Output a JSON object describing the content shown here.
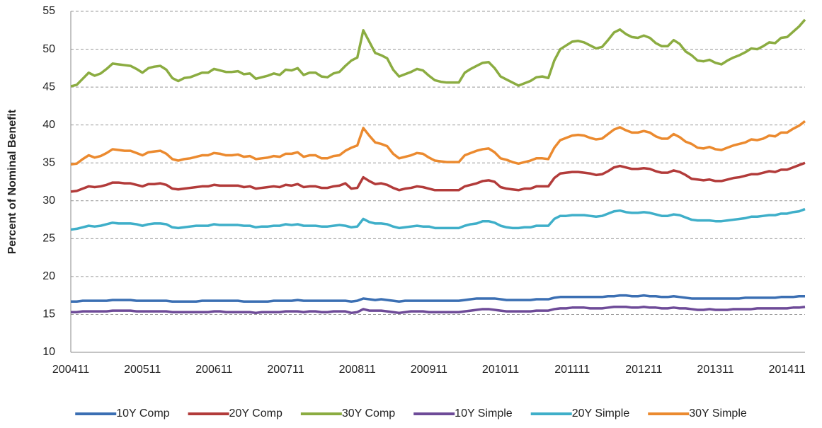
{
  "chart_data": {
    "type": "line",
    "y_label": "Percent of Nominal Benefit",
    "categories": [
      "200411",
      null,
      null,
      null,
      null,
      null,
      null,
      null,
      null,
      null,
      null,
      null,
      "200511",
      null,
      null,
      null,
      null,
      null,
      null,
      null,
      null,
      null,
      null,
      null,
      "200611",
      null,
      null,
      null,
      null,
      null,
      null,
      null,
      null,
      null,
      null,
      null,
      "200711",
      null,
      null,
      null,
      null,
      null,
      null,
      null,
      null,
      null,
      null,
      null,
      "200811",
      null,
      null,
      null,
      null,
      null,
      null,
      null,
      null,
      null,
      null,
      null,
      "200911",
      null,
      null,
      null,
      null,
      null,
      null,
      null,
      null,
      null,
      null,
      null,
      "201011",
      null,
      null,
      null,
      null,
      null,
      null,
      null,
      null,
      null,
      null,
      null,
      "201111",
      null,
      null,
      null,
      null,
      null,
      null,
      null,
      null,
      null,
      null,
      null,
      "201211",
      null,
      null,
      null,
      null,
      null,
      null,
      null,
      null,
      null,
      null,
      null,
      "201311",
      null,
      null,
      null,
      null,
      null,
      null,
      null,
      null,
      null,
      null,
      null,
      "201411",
      null,
      null,
      null
    ],
    "ylim": [
      10,
      55
    ],
    "yticks": [
      10,
      15,
      20,
      25,
      30,
      35,
      40,
      45,
      50,
      55
    ],
    "grid": true,
    "legend": "bottom",
    "series": [
      {
        "name": "10Y Comp",
        "color": "#3b6fb3",
        "values": [
          16.7,
          16.7,
          16.8,
          16.8,
          16.8,
          16.8,
          16.8,
          16.9,
          16.9,
          16.9,
          16.9,
          16.8,
          16.8,
          16.8,
          16.8,
          16.8,
          16.8,
          16.7,
          16.7,
          16.7,
          16.7,
          16.7,
          16.8,
          16.8,
          16.8,
          16.8,
          16.8,
          16.8,
          16.8,
          16.7,
          16.7,
          16.7,
          16.7,
          16.7,
          16.8,
          16.8,
          16.8,
          16.8,
          16.9,
          16.8,
          16.8,
          16.8,
          16.8,
          16.8,
          16.8,
          16.8,
          16.8,
          16.7,
          16.8,
          17.1,
          17.0,
          16.9,
          17.0,
          16.9,
          16.8,
          16.7,
          16.8,
          16.8,
          16.8,
          16.8,
          16.8,
          16.8,
          16.8,
          16.8,
          16.8,
          16.8,
          16.9,
          17.0,
          17.1,
          17.1,
          17.1,
          17.1,
          17.0,
          16.9,
          16.9,
          16.9,
          16.9,
          16.9,
          17.0,
          17.0,
          17.0,
          17.2,
          17.3,
          17.3,
          17.3,
          17.3,
          17.3,
          17.3,
          17.3,
          17.3,
          17.4,
          17.4,
          17.5,
          17.5,
          17.4,
          17.4,
          17.5,
          17.4,
          17.4,
          17.3,
          17.3,
          17.4,
          17.3,
          17.2,
          17.1,
          17.1,
          17.1,
          17.1,
          17.1,
          17.1,
          17.1,
          17.1,
          17.1,
          17.2,
          17.2,
          17.2,
          17.2,
          17.2,
          17.2,
          17.3,
          17.3,
          17.3,
          17.4,
          17.4
        ]
      },
      {
        "name": "20Y Comp",
        "color": "#b23b3a",
        "values": [
          31.2,
          31.3,
          31.6,
          31.9,
          31.8,
          31.9,
          32.1,
          32.4,
          32.4,
          32.3,
          32.3,
          32.1,
          31.9,
          32.2,
          32.2,
          32.3,
          32.1,
          31.6,
          31.5,
          31.6,
          31.7,
          31.8,
          31.9,
          31.9,
          32.1,
          32.0,
          32.0,
          32.0,
          32.0,
          31.8,
          31.9,
          31.6,
          31.7,
          31.8,
          31.9,
          31.8,
          32.1,
          32.0,
          32.2,
          31.8,
          31.9,
          31.9,
          31.7,
          31.7,
          31.9,
          32.0,
          32.3,
          31.6,
          31.7,
          33.1,
          32.6,
          32.2,
          32.3,
          32.1,
          31.7,
          31.4,
          31.6,
          31.7,
          31.9,
          31.8,
          31.6,
          31.4,
          31.4,
          31.4,
          31.4,
          31.4,
          31.9,
          32.1,
          32.3,
          32.6,
          32.7,
          32.5,
          31.8,
          31.6,
          31.5,
          31.4,
          31.6,
          31.6,
          31.9,
          31.9,
          31.9,
          33.0,
          33.6,
          33.7,
          33.8,
          33.8,
          33.7,
          33.6,
          33.4,
          33.5,
          33.9,
          34.4,
          34.6,
          34.4,
          34.2,
          34.2,
          34.3,
          34.2,
          33.9,
          33.7,
          33.7,
          34.0,
          33.8,
          33.4,
          32.9,
          32.8,
          32.7,
          32.8,
          32.6,
          32.6,
          32.8,
          33.0,
          33.1,
          33.3,
          33.5,
          33.5,
          33.7,
          33.9,
          33.8,
          34.1,
          34.1,
          34.4,
          34.7,
          35.0
        ]
      },
      {
        "name": "30Y Comp",
        "color": "#8bac41",
        "values": [
          45.1,
          45.3,
          46.1,
          46.9,
          46.5,
          46.8,
          47.4,
          48.1,
          48.0,
          47.9,
          47.8,
          47.4,
          46.9,
          47.5,
          47.7,
          47.8,
          47.3,
          46.2,
          45.8,
          46.2,
          46.3,
          46.6,
          46.9,
          46.9,
          47.4,
          47.2,
          47.0,
          47.0,
          47.1,
          46.7,
          46.8,
          46.1,
          46.3,
          46.5,
          46.8,
          46.6,
          47.3,
          47.2,
          47.5,
          46.6,
          46.9,
          46.9,
          46.4,
          46.3,
          46.8,
          47.0,
          47.8,
          48.5,
          48.9,
          52.5,
          51.0,
          49.5,
          49.2,
          48.8,
          47.3,
          46.4,
          46.7,
          47.0,
          47.4,
          47.2,
          46.5,
          45.9,
          45.7,
          45.6,
          45.6,
          45.6,
          46.9,
          47.4,
          47.8,
          48.2,
          48.3,
          47.5,
          46.4,
          46.0,
          45.6,
          45.2,
          45.5,
          45.8,
          46.3,
          46.4,
          46.2,
          48.5,
          50.0,
          50.5,
          51.0,
          51.1,
          50.9,
          50.5,
          50.1,
          50.3,
          51.2,
          52.2,
          52.6,
          52.0,
          51.6,
          51.5,
          51.8,
          51.5,
          50.8,
          50.4,
          50.4,
          51.2,
          50.7,
          49.7,
          49.2,
          48.5,
          48.4,
          48.6,
          48.2,
          48.0,
          48.5,
          48.9,
          49.2,
          49.6,
          50.1,
          50.0,
          50.4,
          50.9,
          50.8,
          51.5,
          51.6,
          52.3,
          53.0,
          53.9
        ]
      },
      {
        "name": "10Y Simple",
        "color": "#6e4b98",
        "values": [
          15.3,
          15.3,
          15.4,
          15.4,
          15.4,
          15.4,
          15.4,
          15.5,
          15.5,
          15.5,
          15.5,
          15.4,
          15.4,
          15.4,
          15.4,
          15.4,
          15.4,
          15.3,
          15.3,
          15.3,
          15.3,
          15.3,
          15.3,
          15.3,
          15.4,
          15.4,
          15.3,
          15.3,
          15.3,
          15.3,
          15.3,
          15.2,
          15.3,
          15.3,
          15.3,
          15.3,
          15.4,
          15.4,
          15.4,
          15.3,
          15.4,
          15.4,
          15.3,
          15.3,
          15.4,
          15.4,
          15.4,
          15.2,
          15.3,
          15.7,
          15.5,
          15.5,
          15.5,
          15.4,
          15.3,
          15.2,
          15.3,
          15.4,
          15.4,
          15.4,
          15.3,
          15.3,
          15.3,
          15.3,
          15.3,
          15.3,
          15.4,
          15.5,
          15.6,
          15.7,
          15.7,
          15.6,
          15.5,
          15.4,
          15.4,
          15.4,
          15.4,
          15.4,
          15.5,
          15.5,
          15.5,
          15.7,
          15.8,
          15.8,
          15.9,
          15.9,
          15.9,
          15.8,
          15.8,
          15.8,
          15.9,
          16.0,
          16.0,
          16.0,
          15.9,
          15.9,
          16.0,
          15.9,
          15.9,
          15.8,
          15.8,
          15.9,
          15.8,
          15.8,
          15.7,
          15.6,
          15.6,
          15.7,
          15.6,
          15.6,
          15.6,
          15.7,
          15.7,
          15.7,
          15.7,
          15.8,
          15.8,
          15.8,
          15.8,
          15.8,
          15.8,
          15.9,
          15.9,
          16.0
        ]
      },
      {
        "name": "20Y Simple",
        "color": "#3fafc9",
        "values": [
          26.2,
          26.3,
          26.5,
          26.7,
          26.6,
          26.7,
          26.9,
          27.1,
          27.0,
          27.0,
          27.0,
          26.9,
          26.7,
          26.9,
          27.0,
          27.0,
          26.9,
          26.5,
          26.4,
          26.5,
          26.6,
          26.7,
          26.7,
          26.7,
          26.9,
          26.8,
          26.8,
          26.8,
          26.8,
          26.7,
          26.7,
          26.5,
          26.6,
          26.6,
          26.7,
          26.7,
          26.9,
          26.8,
          26.9,
          26.7,
          26.7,
          26.7,
          26.6,
          26.6,
          26.7,
          26.8,
          26.7,
          26.5,
          26.6,
          27.6,
          27.2,
          27.0,
          27.0,
          26.9,
          26.6,
          26.4,
          26.5,
          26.6,
          26.7,
          26.6,
          26.6,
          26.4,
          26.4,
          26.4,
          26.4,
          26.4,
          26.7,
          26.9,
          27.0,
          27.3,
          27.3,
          27.1,
          26.7,
          26.5,
          26.4,
          26.4,
          26.5,
          26.5,
          26.7,
          26.7,
          26.7,
          27.6,
          28.0,
          28.0,
          28.1,
          28.1,
          28.1,
          28.0,
          27.9,
          28.0,
          28.3,
          28.6,
          28.7,
          28.5,
          28.4,
          28.4,
          28.5,
          28.4,
          28.2,
          28.0,
          28.0,
          28.2,
          28.1,
          27.8,
          27.5,
          27.4,
          27.4,
          27.4,
          27.3,
          27.3,
          27.4,
          27.5,
          27.6,
          27.7,
          27.9,
          27.9,
          28.0,
          28.1,
          28.1,
          28.3,
          28.3,
          28.5,
          28.6,
          28.9
        ]
      },
      {
        "name": "30Y Simple",
        "color": "#eb8a2f",
        "values": [
          34.8,
          34.9,
          35.5,
          36.0,
          35.7,
          35.9,
          36.3,
          36.8,
          36.7,
          36.6,
          36.6,
          36.3,
          36.0,
          36.4,
          36.5,
          36.6,
          36.2,
          35.5,
          35.3,
          35.5,
          35.6,
          35.8,
          36.0,
          36.0,
          36.3,
          36.2,
          36.0,
          36.0,
          36.1,
          35.8,
          35.9,
          35.5,
          35.6,
          35.7,
          35.9,
          35.8,
          36.2,
          36.2,
          36.4,
          35.8,
          36.0,
          36.0,
          35.6,
          35.6,
          35.9,
          36.0,
          36.6,
          37.0,
          37.3,
          39.6,
          38.6,
          37.7,
          37.5,
          37.2,
          36.2,
          35.6,
          35.8,
          36.0,
          36.3,
          36.2,
          35.7,
          35.3,
          35.2,
          35.1,
          35.1,
          35.1,
          36.0,
          36.3,
          36.6,
          36.8,
          36.9,
          36.4,
          35.6,
          35.4,
          35.1,
          34.9,
          35.1,
          35.3,
          35.6,
          35.6,
          35.5,
          37.0,
          38.0,
          38.3,
          38.6,
          38.7,
          38.6,
          38.3,
          38.1,
          38.2,
          38.8,
          39.4,
          39.7,
          39.3,
          39.0,
          39.0,
          39.2,
          39.0,
          38.5,
          38.2,
          38.2,
          38.8,
          38.4,
          37.8,
          37.5,
          37.0,
          36.9,
          37.1,
          36.8,
          36.7,
          37.0,
          37.3,
          37.5,
          37.7,
          38.1,
          38.0,
          38.2,
          38.6,
          38.5,
          39.0,
          39.0,
          39.5,
          39.9,
          40.5
        ]
      }
    ]
  }
}
